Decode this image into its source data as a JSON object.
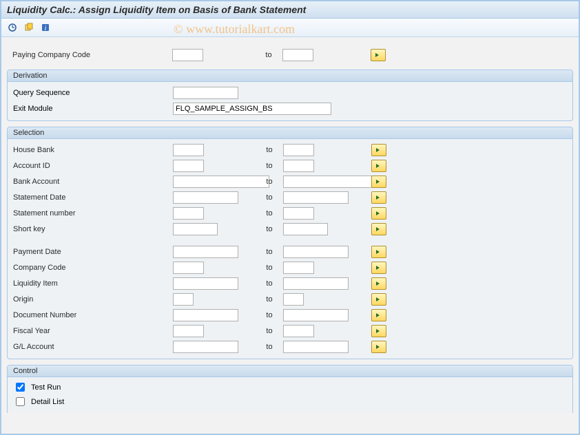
{
  "title": "Liquidity Calc.: Assign Liquidity Item on Basis of Bank Statement",
  "watermark": "© www.tutorialkart.com",
  "colors": {
    "window_border": "#a8c8e8",
    "header_grad_top": "#e8f0f8",
    "header_grad_bot": "#d0e0f0",
    "group_hdr_top": "#dce8f4",
    "group_hdr_bot": "#c8dbec",
    "group_border": "#a8c8e8",
    "body_bg": "#eef2f5",
    "btn_grad_top": "#fff6c0",
    "btn_grad_bot": "#ffd860",
    "btn_border": "#b09030",
    "arrow_fill": "#2a6f2a",
    "watermark_color": "#f6a84a"
  },
  "toolbar": {
    "execute": "execute-icon",
    "variant": "variant-icon",
    "info": "info-icon"
  },
  "top": {
    "paying_company_code": {
      "label": "Paying Company Code",
      "from": "",
      "to_label": "to",
      "to": ""
    }
  },
  "derivation": {
    "title": "Derivation",
    "query_sequence": {
      "label": "Query Sequence",
      "value": ""
    },
    "exit_module": {
      "label": "Exit Module",
      "value": "FLQ_SAMPLE_ASSIGN_BS"
    }
  },
  "selection": {
    "title": "Selection",
    "rows1": [
      {
        "label": "House Bank",
        "from": "",
        "to": "",
        "wf": "w45",
        "wt": "w45"
      },
      {
        "label": "Account ID",
        "from": "",
        "to": "",
        "wf": "w45",
        "wt": "w45"
      },
      {
        "label": "Bank Account",
        "from": "",
        "to": "",
        "wf": "w140",
        "wt": "w140"
      },
      {
        "label": "Statement Date",
        "from": "",
        "to": "",
        "wf": "w95",
        "wt": "w95"
      },
      {
        "label": "Statement number",
        "from": "",
        "to": "",
        "wf": "w45",
        "wt": "w45"
      },
      {
        "label": "Short key",
        "from": "",
        "to": "",
        "wf": "w65",
        "wt": "w65"
      }
    ],
    "rows2": [
      {
        "label": "Payment Date",
        "from": "",
        "to": "",
        "wf": "w95",
        "wt": "w95"
      },
      {
        "label": "Company Code",
        "from": "",
        "to": "",
        "wf": "w45",
        "wt": "w45"
      },
      {
        "label": "Liquidity Item",
        "from": "",
        "to": "",
        "wf": "w95",
        "wt": "w95"
      },
      {
        "label": "Origin",
        "from": "",
        "to": "",
        "wf": "w30",
        "wt": "w30"
      },
      {
        "label": "Document Number",
        "from": "",
        "to": "",
        "wf": "w95",
        "wt": "w95"
      },
      {
        "label": "Fiscal Year",
        "from": "",
        "to": "",
        "wf": "w45",
        "wt": "w45"
      },
      {
        "label": "G/L Account",
        "from": "",
        "to": "",
        "wf": "w95",
        "wt": "w95"
      }
    ]
  },
  "control": {
    "title": "Control",
    "test_run": {
      "label": "Test Run",
      "checked": true
    },
    "detail_list": {
      "label": "Detail List",
      "checked": false
    }
  },
  "common": {
    "to_label": "to"
  }
}
